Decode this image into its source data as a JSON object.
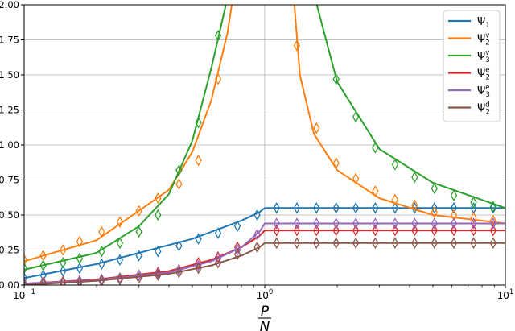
{
  "chart_data": {
    "type": "line",
    "xscale": "log",
    "xlim": [
      0.1,
      10
    ],
    "ylim": [
      0.0,
      2.0
    ],
    "xlabel": {
      "numerator": "P",
      "denominator": "N"
    },
    "ylabel": "",
    "title": "",
    "grid": true,
    "legend": "top-right",
    "x_ticks": [
      {
        "value": 0.1,
        "base": "10",
        "exp": "−1"
      },
      {
        "value": 1,
        "base": "10",
        "exp": "0"
      },
      {
        "value": 10,
        "base": "10",
        "exp": "1"
      }
    ],
    "y_ticks": [
      {
        "value": 0.0,
        "label": "0.00"
      },
      {
        "value": 0.25,
        "label": "0.25"
      },
      {
        "value": 0.5,
        "label": "0.50"
      },
      {
        "value": 0.75,
        "label": "0.75"
      },
      {
        "value": 1.0,
        "label": "1.00"
      },
      {
        "value": 1.25,
        "label": "1.25"
      },
      {
        "value": 1.5,
        "label": "1.50"
      },
      {
        "value": 1.75,
        "label": "1.75"
      },
      {
        "value": 2.0,
        "label": "2.00"
      }
    ],
    "marker": "thin-diamond",
    "series": [
      {
        "name": "Ψ",
        "sub": "1",
        "sup": "",
        "color": "#1f77b4",
        "line_x": [
          0.1,
          0.2,
          0.5,
          0.8,
          0.95,
          1.0,
          2,
          5,
          10
        ],
        "line_y": [
          0.05,
          0.15,
          0.33,
          0.46,
          0.52,
          0.55,
          0.55,
          0.55,
          0.55
        ],
        "marker_x": [
          0.1,
          0.12,
          0.145,
          0.17,
          0.21,
          0.25,
          0.3,
          0.36,
          0.44,
          0.53,
          0.64,
          0.77,
          0.93,
          1.12,
          1.36,
          1.64,
          1.98,
          2.39,
          2.88,
          3.48,
          4.2,
          5.07,
          6.11,
          7.38,
          8.9
        ],
        "marker_y": [
          0.05,
          0.07,
          0.1,
          0.12,
          0.15,
          0.18,
          0.21,
          0.24,
          0.28,
          0.33,
          0.37,
          0.42,
          0.5,
          0.55,
          0.55,
          0.55,
          0.55,
          0.55,
          0.55,
          0.55,
          0.55,
          0.55,
          0.55,
          0.55,
          0.55
        ]
      },
      {
        "name": "Ψ",
        "sub": "2",
        "sup": "v",
        "color": "#ff7f0e",
        "line_x": [
          0.1,
          0.2,
          0.4,
          0.5,
          0.6,
          0.7,
          0.76,
          1.3,
          1.4,
          1.6,
          2,
          3,
          5,
          10
        ],
        "line_y": [
          0.17,
          0.32,
          0.68,
          0.95,
          1.32,
          1.8,
          2.2,
          2.2,
          1.5,
          1.08,
          0.82,
          0.62,
          0.5,
          0.44
        ],
        "marker_x": [
          0.1,
          0.12,
          0.145,
          0.17,
          0.21,
          0.25,
          0.3,
          0.36,
          0.44,
          0.53,
          0.64,
          1.36,
          1.64,
          1.98,
          2.39,
          2.88,
          3.48,
          4.2,
          5.07,
          6.11,
          7.38,
          8.9
        ],
        "marker_y": [
          0.18,
          0.21,
          0.25,
          0.31,
          0.38,
          0.45,
          0.53,
          0.62,
          0.72,
          0.89,
          1.47,
          1.71,
          1.12,
          0.87,
          0.76,
          0.67,
          0.61,
          0.57,
          0.52,
          0.5,
          0.48,
          0.46
        ]
      },
      {
        "name": "Ψ",
        "sub": "3",
        "sup": "v",
        "color": "#2ca02c",
        "line_x": [
          0.1,
          0.2,
          0.3,
          0.4,
          0.5,
          0.6,
          0.7,
          0.8,
          1.5,
          1.6,
          2,
          3,
          5,
          10
        ],
        "line_y": [
          0.11,
          0.23,
          0.42,
          0.65,
          1.03,
          1.55,
          2.05,
          2.3,
          2.3,
          2.08,
          1.45,
          0.97,
          0.73,
          0.55
        ],
        "marker_x": [
          0.1,
          0.12,
          0.145,
          0.17,
          0.21,
          0.25,
          0.3,
          0.36,
          0.44,
          0.53,
          0.64,
          1.98,
          2.39,
          2.88,
          3.48,
          4.2,
          5.07,
          6.11,
          7.38,
          8.9
        ],
        "marker_y": [
          0.12,
          0.14,
          0.16,
          0.19,
          0.24,
          0.3,
          0.38,
          0.5,
          0.82,
          1.16,
          1.78,
          1.47,
          1.2,
          0.98,
          0.86,
          0.77,
          0.69,
          0.64,
          0.59,
          0.56
        ]
      },
      {
        "name": "Ψ",
        "sub": "2",
        "sup": "e",
        "color": "#d62728",
        "line_x": [
          0.1,
          0.2,
          0.4,
          0.6,
          0.8,
          0.95,
          1.0,
          2,
          5,
          10
        ],
        "line_y": [
          0.01,
          0.04,
          0.1,
          0.18,
          0.27,
          0.35,
          0.39,
          0.39,
          0.39,
          0.39
        ],
        "marker_x": [
          0.1,
          0.12,
          0.145,
          0.17,
          0.21,
          0.25,
          0.3,
          0.36,
          0.44,
          0.53,
          0.64,
          0.77,
          0.93,
          1.12,
          1.36,
          1.64,
          1.98,
          2.39,
          2.88,
          3.48,
          4.2,
          5.07,
          6.11,
          7.38,
          8.9
        ],
        "marker_y": [
          0.01,
          0.02,
          0.025,
          0.03,
          0.04,
          0.05,
          0.07,
          0.09,
          0.11,
          0.16,
          0.2,
          0.27,
          0.36,
          0.39,
          0.39,
          0.39,
          0.39,
          0.39,
          0.39,
          0.39,
          0.39,
          0.39,
          0.39,
          0.39,
          0.39
        ]
      },
      {
        "name": "Ψ",
        "sub": "3",
        "sup": "e",
        "color": "#9467bd",
        "line_x": [
          0.1,
          0.2,
          0.4,
          0.6,
          0.8,
          0.95,
          1.0,
          2,
          5,
          10
        ],
        "line_y": [
          0.01,
          0.035,
          0.09,
          0.17,
          0.27,
          0.38,
          0.44,
          0.44,
          0.44,
          0.44
        ],
        "marker_x": [
          0.1,
          0.12,
          0.145,
          0.17,
          0.21,
          0.25,
          0.3,
          0.36,
          0.44,
          0.53,
          0.64,
          0.77,
          0.93,
          1.12,
          1.36,
          1.64,
          1.98,
          2.39,
          2.88,
          3.48,
          4.2,
          5.07,
          6.11,
          7.38,
          8.9
        ],
        "marker_y": [
          0.01,
          0.015,
          0.02,
          0.03,
          0.04,
          0.05,
          0.07,
          0.08,
          0.11,
          0.14,
          0.19,
          0.25,
          0.36,
          0.44,
          0.44,
          0.44,
          0.44,
          0.44,
          0.44,
          0.44,
          0.44,
          0.44,
          0.44,
          0.44,
          0.44
        ]
      },
      {
        "name": "Ψ",
        "sub": "2",
        "sup": "d",
        "color": "#8c564b",
        "line_x": [
          0.1,
          0.2,
          0.4,
          0.6,
          0.8,
          0.95,
          1.0,
          2,
          5,
          10
        ],
        "line_y": [
          0.0,
          0.03,
          0.08,
          0.14,
          0.21,
          0.27,
          0.3,
          0.3,
          0.3,
          0.3
        ],
        "marker_x": [
          0.1,
          0.12,
          0.145,
          0.17,
          0.21,
          0.25,
          0.3,
          0.36,
          0.44,
          0.53,
          0.64,
          0.77,
          0.93,
          1.12,
          1.36,
          1.64,
          1.98,
          2.39,
          2.88,
          3.48,
          4.2,
          5.07,
          6.11,
          7.38,
          8.9
        ],
        "marker_y": [
          0.0,
          0.01,
          0.015,
          0.02,
          0.03,
          0.04,
          0.05,
          0.07,
          0.09,
          0.12,
          0.16,
          0.22,
          0.27,
          0.3,
          0.3,
          0.3,
          0.3,
          0.3,
          0.3,
          0.3,
          0.3,
          0.3,
          0.3,
          0.3,
          0.3
        ]
      }
    ]
  }
}
